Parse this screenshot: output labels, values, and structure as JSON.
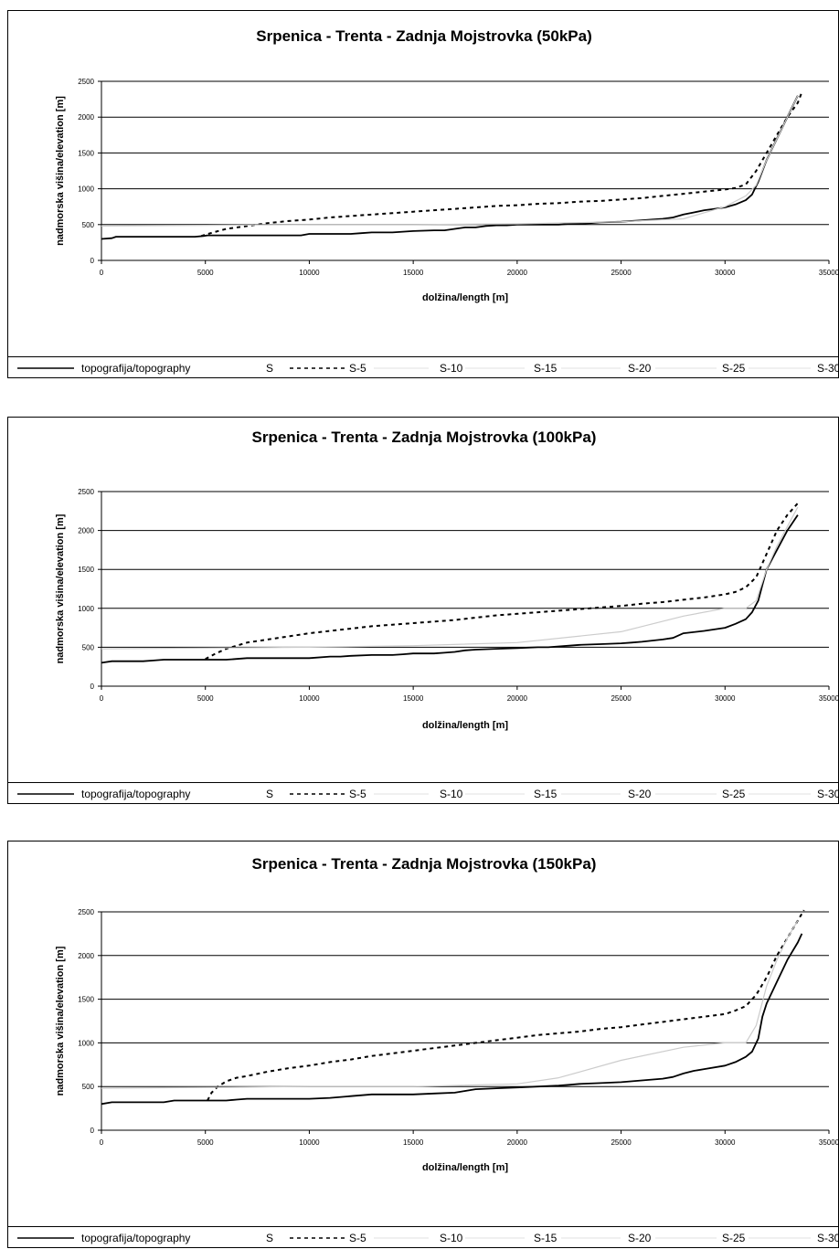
{
  "chart_data": [
    {
      "type": "line",
      "title": "Srpenica - Trenta - Zadnja Mojstrovka (50kPa)",
      "xlabel": "dolžina/length  [m]",
      "ylabel": "nadmorska višina/elevation  [m]",
      "xlim": [
        0,
        35000
      ],
      "ylim": [
        0,
        2500
      ],
      "xticks": [
        "0",
        "5000",
        "10000",
        "15000",
        "20000",
        "25000",
        "30000",
        "35000"
      ],
      "yticks": [
        "0",
        "500",
        "1000",
        "1500",
        "2000",
        "2500"
      ],
      "grid": "horizontal",
      "legend_position": "bottom",
      "legend": [
        "topografija/topography",
        "S",
        "S-5",
        "S-10",
        "S-15",
        "S-20",
        "S-25",
        "S-30"
      ],
      "series": [
        {
          "name": "topografija/topography",
          "style": "solid",
          "color": "#000000",
          "x": [
            0,
            500,
            700,
            2000,
            3000,
            4000,
            4500,
            4900,
            5100,
            6000,
            7000,
            8000,
            9000,
            9600,
            10000,
            11000,
            12000,
            12500,
            13000,
            14000,
            14500,
            15000,
            16000,
            16500,
            17000,
            17500,
            18000,
            18500,
            19000,
            19500,
            20000,
            21000,
            22000,
            22500,
            23000,
            23500,
            24000,
            25000,
            25500,
            26000,
            26500,
            27000,
            27500,
            28000,
            28500,
            29000,
            29500,
            30000,
            30500,
            31000,
            31300,
            31600,
            32000,
            32500,
            33000,
            33500
          ],
          "y": [
            300,
            310,
            330,
            330,
            330,
            330,
            330,
            340,
            350,
            350,
            350,
            350,
            350,
            350,
            370,
            370,
            370,
            380,
            390,
            390,
            400,
            410,
            420,
            420,
            440,
            460,
            460,
            480,
            490,
            490,
            500,
            500,
            500,
            510,
            510,
            520,
            530,
            540,
            550,
            560,
            570,
            580,
            600,
            640,
            670,
            700,
            720,
            740,
            780,
            840,
            920,
            1100,
            1400,
            1700,
            2000,
            2300
          ]
        },
        {
          "name": "S-5",
          "style": "dashed",
          "color": "#000000",
          "x": [
            4800,
            5000,
            5500,
            6000,
            7000,
            8000,
            9000,
            10000,
            11000,
            12000,
            13000,
            14000,
            15000,
            16000,
            17000,
            18000,
            19000,
            20000,
            21000,
            22000,
            23000,
            24000,
            25000,
            26000,
            27000,
            28000,
            29000,
            30000,
            30500,
            31000,
            31500,
            32000,
            32500,
            33000,
            33500,
            33700
          ],
          "y": [
            340,
            360,
            400,
            440,
            480,
            520,
            550,
            570,
            600,
            620,
            640,
            660,
            680,
            700,
            720,
            740,
            760,
            770,
            790,
            800,
            820,
            830,
            850,
            870,
            900,
            930,
            960,
            990,
            1010,
            1060,
            1250,
            1500,
            1750,
            2000,
            2200,
            2350
          ]
        },
        {
          "name": "S",
          "style": "light",
          "color": "#cccccc",
          "x": [
            0,
            5000,
            10000,
            15000,
            20000,
            25000,
            28000,
            30000,
            31000,
            31500,
            32000,
            32500,
            33000,
            33500
          ],
          "y": [
            480,
            490,
            500,
            500,
            510,
            540,
            580,
            750,
            900,
            1050,
            1400,
            1700,
            2000,
            2300
          ]
        }
      ]
    },
    {
      "type": "line",
      "title": "Srpenica - Trenta - Zadnja Mojstrovka (100kPa)",
      "xlabel": "dolžina/length  [m]",
      "ylabel": "nadmorska višina/elevation  [m]",
      "xlim": [
        0,
        35000
      ],
      "ylim": [
        0,
        2500
      ],
      "xticks": [
        "0",
        "5000",
        "10000",
        "15000",
        "20000",
        "25000",
        "30000",
        "35000"
      ],
      "yticks": [
        "0",
        "500",
        "1000",
        "1500",
        "2000",
        "2500"
      ],
      "grid": "horizontal",
      "legend_position": "bottom",
      "legend": [
        "topografija/topography",
        "S",
        "S-5",
        "S-10",
        "S-15",
        "S-20",
        "S-25",
        "S-30"
      ],
      "series": [
        {
          "name": "topografija/topography",
          "style": "solid",
          "color": "#000000",
          "x": [
            0,
            500,
            1000,
            2000,
            2500,
            3000,
            4000,
            5000,
            6000,
            6500,
            7000,
            8000,
            9000,
            10000,
            11000,
            11500,
            12000,
            13000,
            14000,
            14500,
            15000,
            16000,
            16500,
            17000,
            17500,
            18000,
            19000,
            20000,
            21000,
            21500,
            22000,
            22500,
            23000,
            24000,
            25000,
            25500,
            26000,
            27000,
            27500,
            28000,
            29000,
            30000,
            30500,
            31000,
            31300,
            31600,
            31800,
            32000,
            32500,
            33000,
            33500
          ],
          "y": [
            300,
            320,
            320,
            320,
            330,
            340,
            340,
            340,
            340,
            350,
            360,
            360,
            360,
            360,
            380,
            380,
            390,
            400,
            400,
            410,
            420,
            420,
            430,
            440,
            460,
            470,
            480,
            490,
            500,
            500,
            510,
            520,
            530,
            540,
            550,
            560,
            570,
            600,
            620,
            680,
            710,
            750,
            800,
            860,
            950,
            1100,
            1300,
            1500,
            1750,
            2000,
            2200
          ]
        },
        {
          "name": "S-5",
          "style": "dashed",
          "color": "#000000",
          "x": [
            5000,
            5500,
            6000,
            7000,
            8000,
            9000,
            10000,
            11000,
            12000,
            13000,
            14000,
            15000,
            16000,
            17000,
            18000,
            19000,
            20000,
            21000,
            22000,
            23000,
            24000,
            25000,
            26000,
            27000,
            28000,
            29000,
            30000,
            30500,
            31000,
            31500,
            32000,
            32500,
            33000,
            33500
          ],
          "y": [
            350,
            420,
            480,
            560,
            600,
            640,
            680,
            710,
            740,
            770,
            790,
            810,
            830,
            850,
            880,
            910,
            930,
            950,
            970,
            990,
            1010,
            1030,
            1060,
            1080,
            1110,
            1140,
            1180,
            1210,
            1270,
            1400,
            1700,
            2000,
            2200,
            2350
          ]
        },
        {
          "name": "S",
          "style": "light",
          "color": "#cccccc",
          "x": [
            0,
            5000,
            10000,
            15000,
            20000,
            25000,
            28000,
            30000,
            31000,
            31500,
            32000,
            32500,
            33000,
            33500
          ],
          "y": [
            480,
            490,
            500,
            520,
            560,
            700,
            900,
            1000,
            1000,
            1100,
            1500,
            1800,
            2050,
            2300
          ]
        }
      ]
    },
    {
      "type": "line",
      "title": "Srpenica - Trenta - Zadnja Mojstrovka (150kPa)",
      "xlabel": "dolžina/length  [m]",
      "ylabel": "nadmorska višina/elevation  [m]",
      "xlim": [
        0,
        35000
      ],
      "ylim": [
        0,
        2500
      ],
      "xticks": [
        "0",
        "5000",
        "10000",
        "15000",
        "20000",
        "25000",
        "30000",
        "35000"
      ],
      "yticks": [
        "0",
        "500",
        "1000",
        "1500",
        "2000",
        "2500"
      ],
      "grid": "horizontal",
      "legend_position": "bottom",
      "legend": [
        "topografija/topography",
        "S",
        "S-5",
        "S-10",
        "S-15",
        "S-20",
        "S-25",
        "S-30"
      ],
      "series": [
        {
          "name": "topografija/topography",
          "style": "solid",
          "color": "#000000",
          "x": [
            0,
            500,
            1000,
            2000,
            3000,
            3500,
            4000,
            5000,
            6000,
            6500,
            7000,
            8000,
            9000,
            10000,
            11000,
            12000,
            13000,
            14000,
            15000,
            16000,
            17000,
            17500,
            18000,
            19000,
            20000,
            21000,
            22000,
            22500,
            23000,
            24000,
            25000,
            26000,
            27000,
            27500,
            28000,
            28500,
            29000,
            30000,
            30500,
            31000,
            31300,
            31600,
            31800,
            32000,
            32500,
            33000,
            33500,
            33700
          ],
          "y": [
            300,
            320,
            320,
            320,
            320,
            340,
            340,
            340,
            340,
            350,
            360,
            360,
            360,
            360,
            370,
            390,
            410,
            410,
            410,
            420,
            430,
            450,
            470,
            480,
            490,
            500,
            510,
            520,
            530,
            540,
            550,
            570,
            590,
            610,
            650,
            680,
            700,
            740,
            780,
            840,
            900,
            1050,
            1300,
            1450,
            1700,
            1950,
            2150,
            2250
          ]
        },
        {
          "name": "S-5",
          "style": "dashed",
          "color": "#000000",
          "x": [
            5100,
            5300,
            5600,
            6000,
            6500,
            7000,
            8000,
            9000,
            10000,
            11000,
            12000,
            13000,
            14000,
            15000,
            16000,
            17000,
            18000,
            19000,
            20000,
            21000,
            22000,
            23000,
            24000,
            25000,
            26000,
            27000,
            28000,
            29000,
            30000,
            30500,
            31000,
            31500,
            32000,
            32500,
            33000,
            33500,
            33800
          ],
          "y": [
            340,
            430,
            500,
            560,
            600,
            620,
            670,
            710,
            740,
            780,
            810,
            850,
            880,
            910,
            940,
            970,
            1000,
            1030,
            1060,
            1090,
            1110,
            1130,
            1160,
            1180,
            1210,
            1240,
            1270,
            1300,
            1330,
            1370,
            1420,
            1550,
            1750,
            2000,
            2200,
            2400,
            2520
          ]
        },
        {
          "name": "S",
          "style": "light",
          "color": "#cccccc",
          "x": [
            0,
            5000,
            10000,
            15000,
            20000,
            22000,
            25000,
            28000,
            30000,
            31000,
            31500,
            32000,
            32500,
            33000,
            33500
          ],
          "y": [
            480,
            490,
            500,
            500,
            530,
            600,
            800,
            950,
            1000,
            1000,
            1200,
            1650,
            1950,
            2200,
            2400
          ]
        }
      ]
    }
  ]
}
